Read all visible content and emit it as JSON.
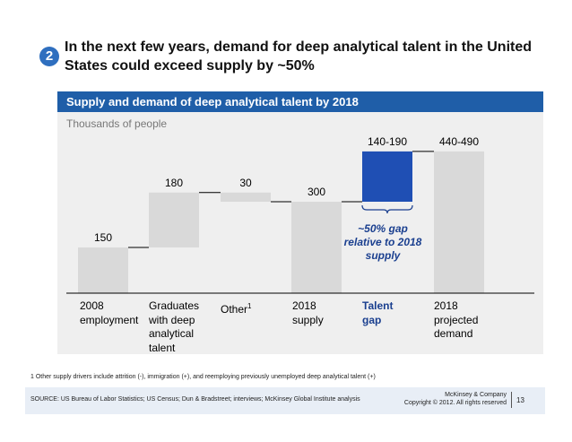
{
  "slide": {
    "badge_number": "2",
    "headline": "In the next few years, demand for deep analytical talent in the United States could exceed supply by ~50%",
    "banner": "Supply and demand of deep analytical talent by 2018",
    "units": "Thousands of people",
    "gap_annotation": "~50% gap relative to 2018 supply",
    "footnote": "1 Other supply drivers include attrition (-), immigration (+), and reemploying previously unemployed deep analytical talent (+)",
    "source": "SOURCE: US Bureau of Labor Statistics; US Census; Dun & Bradstreet; interviews; McKinsey Global Institute analysis",
    "brand_line1": "McKinsey & Company",
    "brand_line2": "Copyright © 2012. All rights reserved",
    "page_number": "13"
  },
  "colors": {
    "bar_grey": "#d9d9d9",
    "bar_blue": "#1f4fb4",
    "banner_blue": "#1f5ea8",
    "annotation_blue": "#1a3f8f",
    "panel_grey": "#efefef"
  },
  "chart_data": {
    "type": "bar",
    "subtype": "waterfall",
    "title": "Supply and demand of deep analytical talent by 2018",
    "ylabel": "Thousands of people",
    "categories": [
      "2008 employment",
      "Graduates with deep analytical talent",
      "Other1",
      "2018 supply",
      "Talent gap",
      "2018 projected demand"
    ],
    "category_labels": [
      "2008\nemployment",
      "Graduates\nwith deep\nanalytical\ntalent",
      "Other",
      "2018\nsupply",
      "Talent\ngap",
      "2018\nprojected\ndemand"
    ],
    "other_superscript": "1",
    "value_labels": [
      "150",
      "180",
      "30",
      "300",
      "140-190",
      "440-490"
    ],
    "bars": [
      {
        "kind": "total",
        "start": 0,
        "end": 150,
        "color": "#d9d9d9"
      },
      {
        "kind": "increment",
        "start": 150,
        "end": 330,
        "color": "#d9d9d9"
      },
      {
        "kind": "decrement",
        "start": 330,
        "end": 300,
        "color": "#d9d9d9"
      },
      {
        "kind": "total",
        "start": 0,
        "end": 300,
        "color": "#d9d9d9"
      },
      {
        "kind": "increment",
        "start": 300,
        "end": 465,
        "color": "#1f4fb4"
      },
      {
        "kind": "total",
        "start": 0,
        "end": 465,
        "color": "#d9d9d9"
      }
    ],
    "ylim": [
      0,
      500
    ],
    "grid": false,
    "legend": "none"
  }
}
